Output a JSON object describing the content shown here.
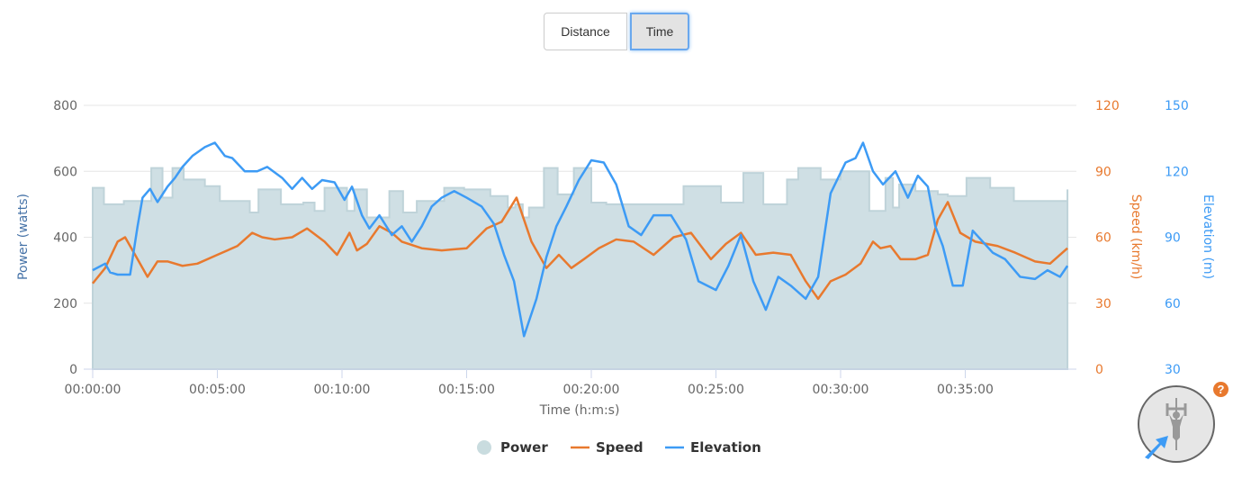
{
  "toggle": {
    "distance_label": "Distance",
    "time_label": "Time",
    "active": "Time"
  },
  "colors": {
    "power": "#cfdfe4",
    "power_edge": "#bfd3d9",
    "speed": "#e8792e",
    "elevation": "#3d9bf5",
    "grid": "#e6e6e6",
    "help": "#e8792e"
  },
  "legend": {
    "power": "Power",
    "speed": "Speed",
    "elevation": "Elevation"
  },
  "help_icon": "?",
  "chart_data": {
    "type": "line",
    "title": "",
    "xlabel": "Time (h:m:s)",
    "x_ticks": [
      "00:00:00",
      "00:05:00",
      "00:10:00",
      "00:15:00",
      "00:20:00",
      "00:25:00",
      "00:30:00",
      "00:35:00"
    ],
    "x_range_min": [
      0,
      39.1
    ],
    "axes": {
      "power": {
        "label": "Power (watts)",
        "ticks": [
          "0",
          "200",
          "400",
          "600",
          "800"
        ],
        "range": [
          0,
          800
        ]
      },
      "speed": {
        "label": "Speed (km/h)",
        "ticks": [
          "0",
          "30",
          "60",
          "90",
          "120"
        ],
        "range": [
          0,
          120
        ]
      },
      "elevation": {
        "label": "Elevation (m)",
        "ticks": [
          "30",
          "60",
          "90",
          "120",
          "150"
        ],
        "range": [
          30,
          150
        ]
      }
    },
    "series": [
      {
        "name": "Power",
        "type": "area-step",
        "x_min": [
          0,
          0.45,
          1.25,
          2.35,
          2.8,
          3.2,
          3.65,
          4.5,
          5.1,
          6.3,
          6.65,
          7.55,
          8.45,
          8.9,
          9.3,
          10.2,
          10.5,
          11.0,
          11.9,
          12.45,
          13.0,
          14.1,
          14.9,
          15.95,
          16.65,
          16.95,
          17.25,
          17.5,
          18.1,
          18.65,
          19.3,
          20.0,
          20.6,
          22.2,
          23.7,
          25.2,
          26.1,
          26.9,
          27.85,
          28.3,
          29.2,
          30.0,
          30.6,
          31.15,
          31.8,
          32.1,
          32.35,
          33.0,
          33.9,
          34.3,
          35.05,
          36.0,
          36.95,
          37.9,
          39.1
        ],
        "values": [
          550,
          500,
          510,
          610,
          520,
          610,
          575,
          555,
          510,
          475,
          545,
          500,
          505,
          480,
          550,
          480,
          545,
          460,
          540,
          475,
          510,
          550,
          545,
          525,
          490,
          500,
          460,
          490,
          610,
          530,
          610,
          505,
          500,
          500,
          555,
          505,
          595,
          500,
          575,
          610,
          575,
          600,
          600,
          480,
          580,
          490,
          560,
          540,
          530,
          525,
          580,
          550,
          510,
          510,
          545
        ]
      },
      {
        "name": "Speed",
        "unit": "km/h",
        "x_min": [
          0,
          0.5,
          1.0,
          1.3,
          1.7,
          2.2,
          2.6,
          3.0,
          3.6,
          4.2,
          5.0,
          5.8,
          6.4,
          6.8,
          7.3,
          8.0,
          8.6,
          9.3,
          9.8,
          10.3,
          10.6,
          11.0,
          11.5,
          12.0,
          12.4,
          13.2,
          14.0,
          15.0,
          15.8,
          16.4,
          17.0,
          17.6,
          18.2,
          18.7,
          19.2,
          19.7,
          20.3,
          21.0,
          21.7,
          22.5,
          23.3,
          24.0,
          24.8,
          25.4,
          26.0,
          26.6,
          27.3,
          28.0,
          28.6,
          29.1,
          29.6,
          30.2,
          30.8,
          31.3,
          31.6,
          32.0,
          32.4,
          33.0,
          33.5,
          33.9,
          34.3,
          34.8,
          35.4,
          36.3,
          37.0,
          37.8,
          38.4,
          39.1
        ],
        "values": [
          39,
          46,
          58,
          60,
          52,
          42,
          49,
          49,
          47,
          48,
          52,
          56,
          62,
          60,
          59,
          60,
          64,
          58,
          52,
          62,
          54,
          57,
          65,
          62,
          58,
          55,
          54,
          55,
          64,
          67,
          78,
          58,
          46,
          52,
          46,
          50,
          55,
          59,
          58,
          52,
          60,
          62,
          50,
          57,
          62,
          52,
          53,
          52,
          40,
          32,
          40,
          43,
          48,
          58,
          55,
          56,
          50,
          50,
          52,
          68,
          76,
          62,
          58,
          56,
          53,
          49,
          48,
          55
        ]
      },
      {
        "name": "Elevation",
        "unit": "m",
        "x_min": [
          0,
          0.5,
          0.7,
          1.0,
          1.5,
          1.8,
          2.0,
          2.3,
          2.6,
          3.0,
          3.3,
          3.6,
          4.0,
          4.5,
          4.9,
          5.3,
          5.6,
          6.1,
          6.6,
          7.0,
          7.6,
          8.0,
          8.4,
          8.8,
          9.2,
          9.7,
          10.1,
          10.4,
          10.8,
          11.1,
          11.5,
          12.0,
          12.4,
          12.8,
          13.2,
          13.6,
          14.0,
          14.5,
          15.0,
          15.6,
          16.1,
          16.5,
          16.9,
          17.3,
          17.8,
          18.2,
          18.6,
          19.0,
          19.5,
          20.0,
          20.5,
          21.0,
          21.5,
          22.0,
          22.5,
          23.2,
          23.8,
          24.3,
          25.0,
          25.5,
          26.0,
          26.5,
          27.0,
          27.5,
          28.0,
          28.6,
          29.1,
          29.6,
          30.2,
          30.6,
          30.9,
          31.3,
          31.7,
          32.2,
          32.7,
          33.1,
          33.5,
          33.8,
          34.1,
          34.5,
          34.9,
          35.3,
          35.7,
          36.1,
          36.6,
          37.2,
          37.8,
          38.3,
          38.8,
          39.1
        ],
        "values": [
          75,
          78,
          74,
          73,
          73,
          95,
          108,
          112,
          106,
          113,
          117,
          122,
          127,
          131,
          133,
          127,
          126,
          120,
          120,
          122,
          117,
          112,
          117,
          112,
          116,
          115,
          107,
          113,
          100,
          94,
          100,
          91,
          95,
          88,
          95,
          104,
          108,
          111,
          108,
          104,
          96,
          82,
          70,
          45,
          62,
          81,
          95,
          104,
          116,
          125,
          124,
          114,
          95,
          91,
          100,
          100,
          89,
          70,
          66,
          77,
          91,
          70,
          57,
          72,
          68,
          62,
          72,
          110,
          124,
          126,
          133,
          120,
          114,
          120,
          108,
          118,
          113,
          95,
          86,
          68,
          68,
          93,
          88,
          83,
          80,
          72,
          71,
          75,
          72,
          77
        ]
      }
    ],
    "legend_position": "bottom",
    "grid": true
  }
}
